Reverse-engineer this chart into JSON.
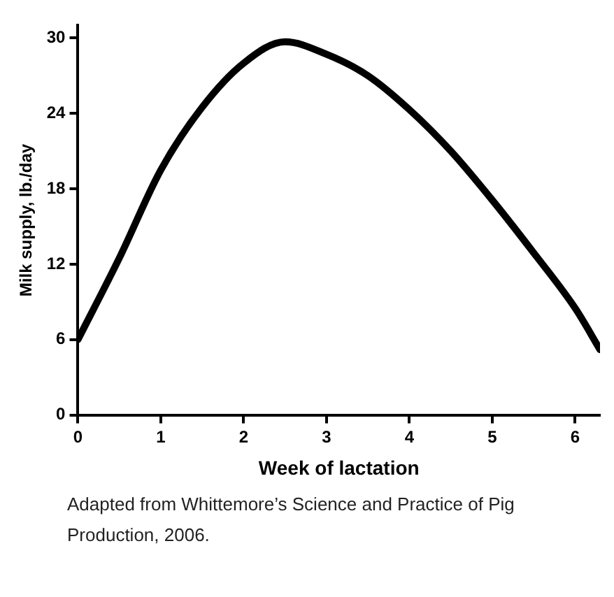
{
  "chart_data": {
    "type": "line",
    "xlabel": "Week of lactation",
    "ylabel": "Milk supply, lb./day",
    "x": [
      0,
      0.5,
      1,
      1.5,
      2,
      2.5,
      3,
      3.5,
      4,
      4.5,
      5,
      5.5,
      6,
      6.3
    ],
    "series": [
      {
        "color": "#000000",
        "values": [
          6,
          12.5,
          19.5,
          24.5,
          28,
          29.7,
          28.7,
          27,
          24.3,
          21,
          17.1,
          12.9,
          8.5,
          5.2
        ]
      }
    ],
    "xlim": [
      0,
      6.3
    ],
    "ylim": [
      0,
      31
    ],
    "xticks": [
      0,
      1,
      2,
      3,
      4,
      5,
      6
    ],
    "yticks": [
      0,
      6,
      12,
      18,
      24,
      30
    ],
    "grid": false,
    "legend": false,
    "marker": "none",
    "line_style": "solid",
    "annotations": [
      "Adapted from Whittemore’s Science and Practice of Pig Production, 2006."
    ]
  }
}
